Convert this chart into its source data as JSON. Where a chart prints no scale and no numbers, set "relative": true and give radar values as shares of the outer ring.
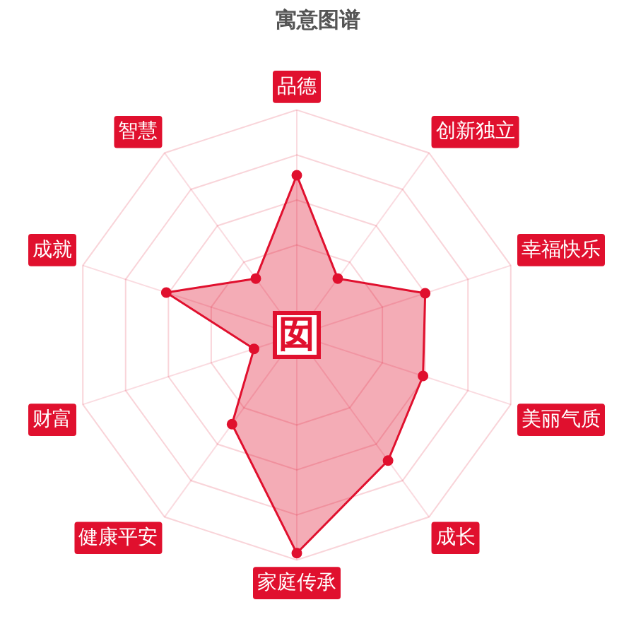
{
  "chart_data": {
    "type": "radar",
    "title": "寓意图谱",
    "categories": [
      "品德",
      "创新独立",
      "幸福快乐",
      "美丽气质",
      "成长",
      "家庭传承",
      "健康平安",
      "财富",
      "成就",
      "智慧"
    ],
    "relative": true,
    "grid": true,
    "marker": "circle",
    "legend": false,
    "series": [
      {
        "color": "#e0102e",
        "values": [
          0.71,
          0.31,
          0.6,
          0.59,
          0.69,
          0.97,
          0.49,
          0.2,
          0.61,
          0.31
        ]
      }
    ],
    "annotations": [
      "囡"
    ]
  }
}
